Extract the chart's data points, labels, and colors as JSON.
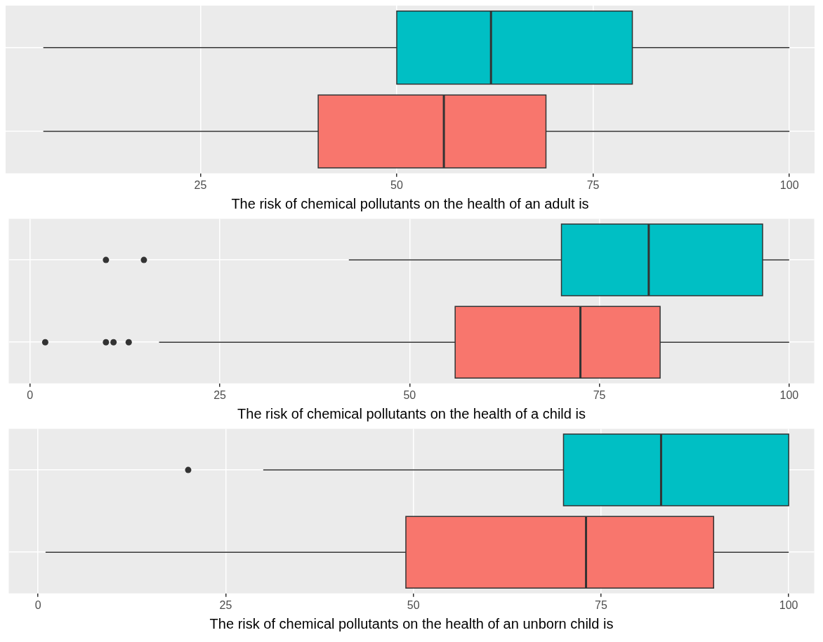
{
  "chart_data": [
    {
      "type": "box",
      "orientation": "horizontal",
      "xlabel": "The risk of chemical pollutants on the health of an adult is",
      "categories": [
        null,
        null
      ],
      "colors": [
        "#00bfc4",
        "#f8766d"
      ],
      "boxes": [
        {
          "low": 5,
          "q1": 50,
          "median": 62,
          "q3": 80,
          "high": 100
        },
        {
          "low": 5,
          "q1": 40,
          "median": 56,
          "q3": 69,
          "high": 100
        }
      ],
      "xlim": [
        0.2,
        103.2
      ],
      "xticks": [
        25,
        50,
        75,
        100
      ],
      "grid": true,
      "tick_labels": "x"
    },
    {
      "type": "box",
      "orientation": "horizontal",
      "xlabel": "The risk of chemical pollutants on the health of a child is",
      "categories": [
        null,
        null
      ],
      "colors": [
        "#00bfc4",
        "#f8766d"
      ],
      "boxes": [
        {
          "low": 42,
          "q1": 70,
          "median": 81.5,
          "q3": 96.5,
          "high": 100,
          "outliers": [
            10,
            15
          ]
        },
        {
          "low": 17,
          "q1": 56,
          "median": 72.5,
          "q3": 83,
          "high": 100,
          "outliers": [
            2,
            10,
            11,
            13
          ]
        }
      ],
      "xlim": [
        -2.8,
        103.3
      ],
      "xticks": [
        0,
        25,
        50,
        75,
        100
      ],
      "grid": true,
      "tick_labels": "x"
    },
    {
      "type": "box",
      "orientation": "horizontal",
      "xlabel": "The risk of chemical pollutants on the health of an unborn child is",
      "categories": [
        null,
        null
      ],
      "colors": [
        "#00bfc4",
        "#f8766d"
      ],
      "boxes": [
        {
          "low": 30,
          "q1": 70,
          "median": 83,
          "q3": 100,
          "high": 100,
          "outliers": [
            20
          ]
        },
        {
          "low": 1,
          "q1": 49,
          "median": 73,
          "q3": 90,
          "high": 100
        }
      ],
      "xlim": [
        -3.9,
        103.4
      ],
      "xticks": [
        0,
        25,
        50,
        75,
        100
      ],
      "grid": true,
      "tick_labels": "x"
    }
  ]
}
